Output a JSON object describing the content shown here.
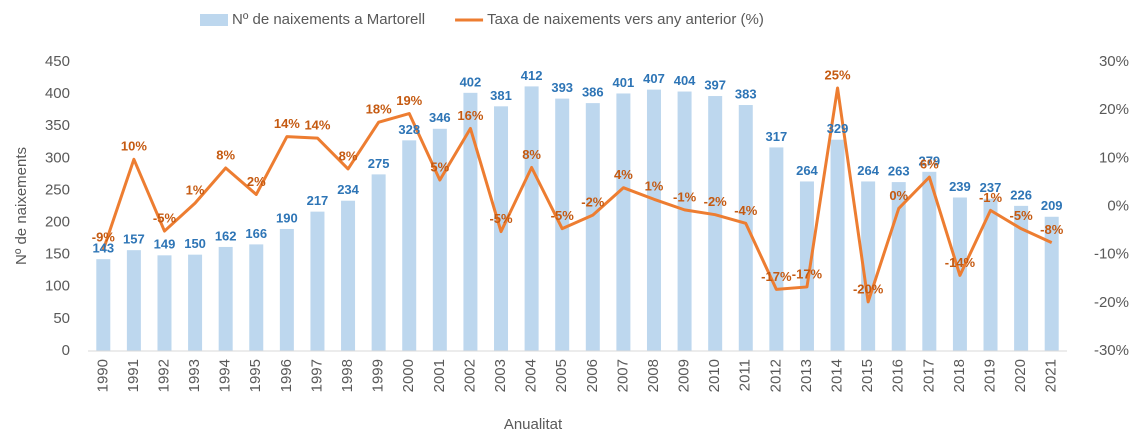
{
  "chart_data": {
    "type": "bar-line",
    "x_label": "Anualitat",
    "y_label": "Nº de naixements",
    "categories": [
      "1990",
      "1991",
      "1992",
      "1993",
      "1994",
      "1995",
      "1996",
      "1997",
      "1998",
      "1999",
      "2000",
      "2001",
      "2002",
      "2003",
      "2004",
      "2005",
      "2006",
      "2007",
      "2008",
      "2009",
      "2010",
      "2011",
      "2012",
      "2013",
      "2014",
      "2015",
      "2016",
      "2017",
      "2018",
      "2019",
      "2020",
      "2021"
    ],
    "series": [
      {
        "name": "Nº de naixements a Martorell",
        "color": "#bdd7ee",
        "kind": "bar",
        "values": [
          143,
          157,
          149,
          150,
          162,
          166,
          190,
          217,
          234,
          275,
          328,
          346,
          402,
          381,
          412,
          393,
          386,
          401,
          407,
          404,
          397,
          383,
          317,
          264,
          329,
          264,
          263,
          279,
          239,
          237,
          226,
          209
        ]
      },
      {
        "name": "Taxa de naixements vers any anterior (%)",
        "color": "#ed7d31",
        "kind": "line",
        "axis": "y2",
        "values": [
          -9,
          9.8,
          -5.1,
          0.7,
          8.0,
          2.5,
          14.5,
          14.2,
          7.8,
          17.5,
          19.3,
          5.5,
          16.2,
          -5.2,
          8.1,
          -4.6,
          -1.8,
          3.9,
          1.5,
          -0.7,
          -1.7,
          -3.5,
          -17.2,
          -16.7,
          24.6,
          -19.8,
          -0.4,
          6.1,
          -14.3,
          -0.8,
          -4.6,
          -7.5
        ],
        "value_labels": [
          "-9%",
          "10%",
          "-5%",
          "1%",
          "8%",
          "2%",
          "14%",
          "14%",
          "8%",
          "18%",
          "19%",
          "5%",
          "16%",
          "-5%",
          "8%",
          "-5%",
          "-2%",
          "4%",
          "1%",
          "-1%",
          "-2%",
          "-4%",
          "-17%",
          "-17%",
          "25%",
          "-20%",
          "0%",
          "6%",
          "-14%",
          "-1%",
          "-5%",
          "-8%"
        ]
      }
    ],
    "ylim": [
      0,
      450
    ],
    "yticks": [
      0,
      50,
      100,
      150,
      200,
      250,
      300,
      350,
      400,
      450
    ],
    "y2lim": [
      -30,
      30
    ],
    "y2ticks": [
      {
        "value": -30,
        "label": "-30%"
      },
      {
        "value": -20,
        "label": "-20%"
      },
      {
        "value": -10,
        "label": "-10%"
      },
      {
        "value": 0,
        "label": "0%"
      },
      {
        "value": 10,
        "label": "10%"
      },
      {
        "value": 20,
        "label": "20%"
      },
      {
        "value": 30,
        "label": "30%"
      }
    ],
    "legend": "top"
  }
}
